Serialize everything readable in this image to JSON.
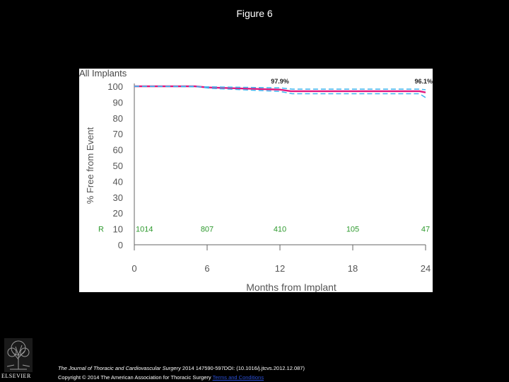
{
  "slide_title": "Figure 6",
  "footer": {
    "journal": "The Journal of Thoracic and Cardiovascular Surgery",
    "citation": " 2014 147590-597DOI: (10.1016/j.jtcvs.2012.12.087)",
    "copyright": "Copyright © 2014 The American Association for Thoracic Surgery ",
    "terms_link": "Terms and Conditions"
  },
  "logo": {
    "label": "ELSEVIER",
    "icon": "elsevier-tree-icon"
  },
  "colors": {
    "curve": "#e0187e",
    "ci": "#3fb6f0",
    "at_risk": "#2e9a2e",
    "axis": "#666666"
  },
  "chart_data": {
    "type": "line",
    "title": "All Implants",
    "xlabel": "Months from Implant",
    "ylabel": "% Free from Event",
    "xlim": [
      0,
      24
    ],
    "ylim": [
      0,
      100
    ],
    "xticks": [
      "0",
      "6",
      "12",
      "18",
      "24"
    ],
    "yticks": [
      "0",
      "10",
      "20",
      "30",
      "40",
      "50",
      "60",
      "70",
      "80",
      "90",
      "100"
    ],
    "series": [
      {
        "role": "estimate",
        "x": [
          0,
          5,
          6,
          12,
          12.9,
          23.5,
          24
        ],
        "y": [
          100,
          100,
          99.3,
          97.9,
          96.9,
          96.9,
          96.1
        ]
      },
      {
        "role": "upper",
        "x": [
          0,
          6,
          12,
          13,
          23.5,
          24
        ],
        "y": [
          100,
          99.7,
          99,
          98.2,
          98.2,
          97.8
        ]
      },
      {
        "role": "lower",
        "x": [
          0,
          5,
          6.3,
          12,
          13,
          23.5,
          24
        ],
        "y": [
          100,
          100,
          98.7,
          96.8,
          95.3,
          95.3,
          92.9
        ]
      }
    ],
    "annotations": [
      {
        "text": "97.9%",
        "x": 12,
        "y": 97.9
      },
      {
        "text": "96.1%",
        "x": 24,
        "y": 96.1
      }
    ],
    "at_risk": {
      "label": "R",
      "y": 10,
      "x": [
        0,
        6,
        12,
        18,
        24
      ],
      "values": [
        "1014",
        "807",
        "410",
        "105",
        "47"
      ]
    }
  }
}
